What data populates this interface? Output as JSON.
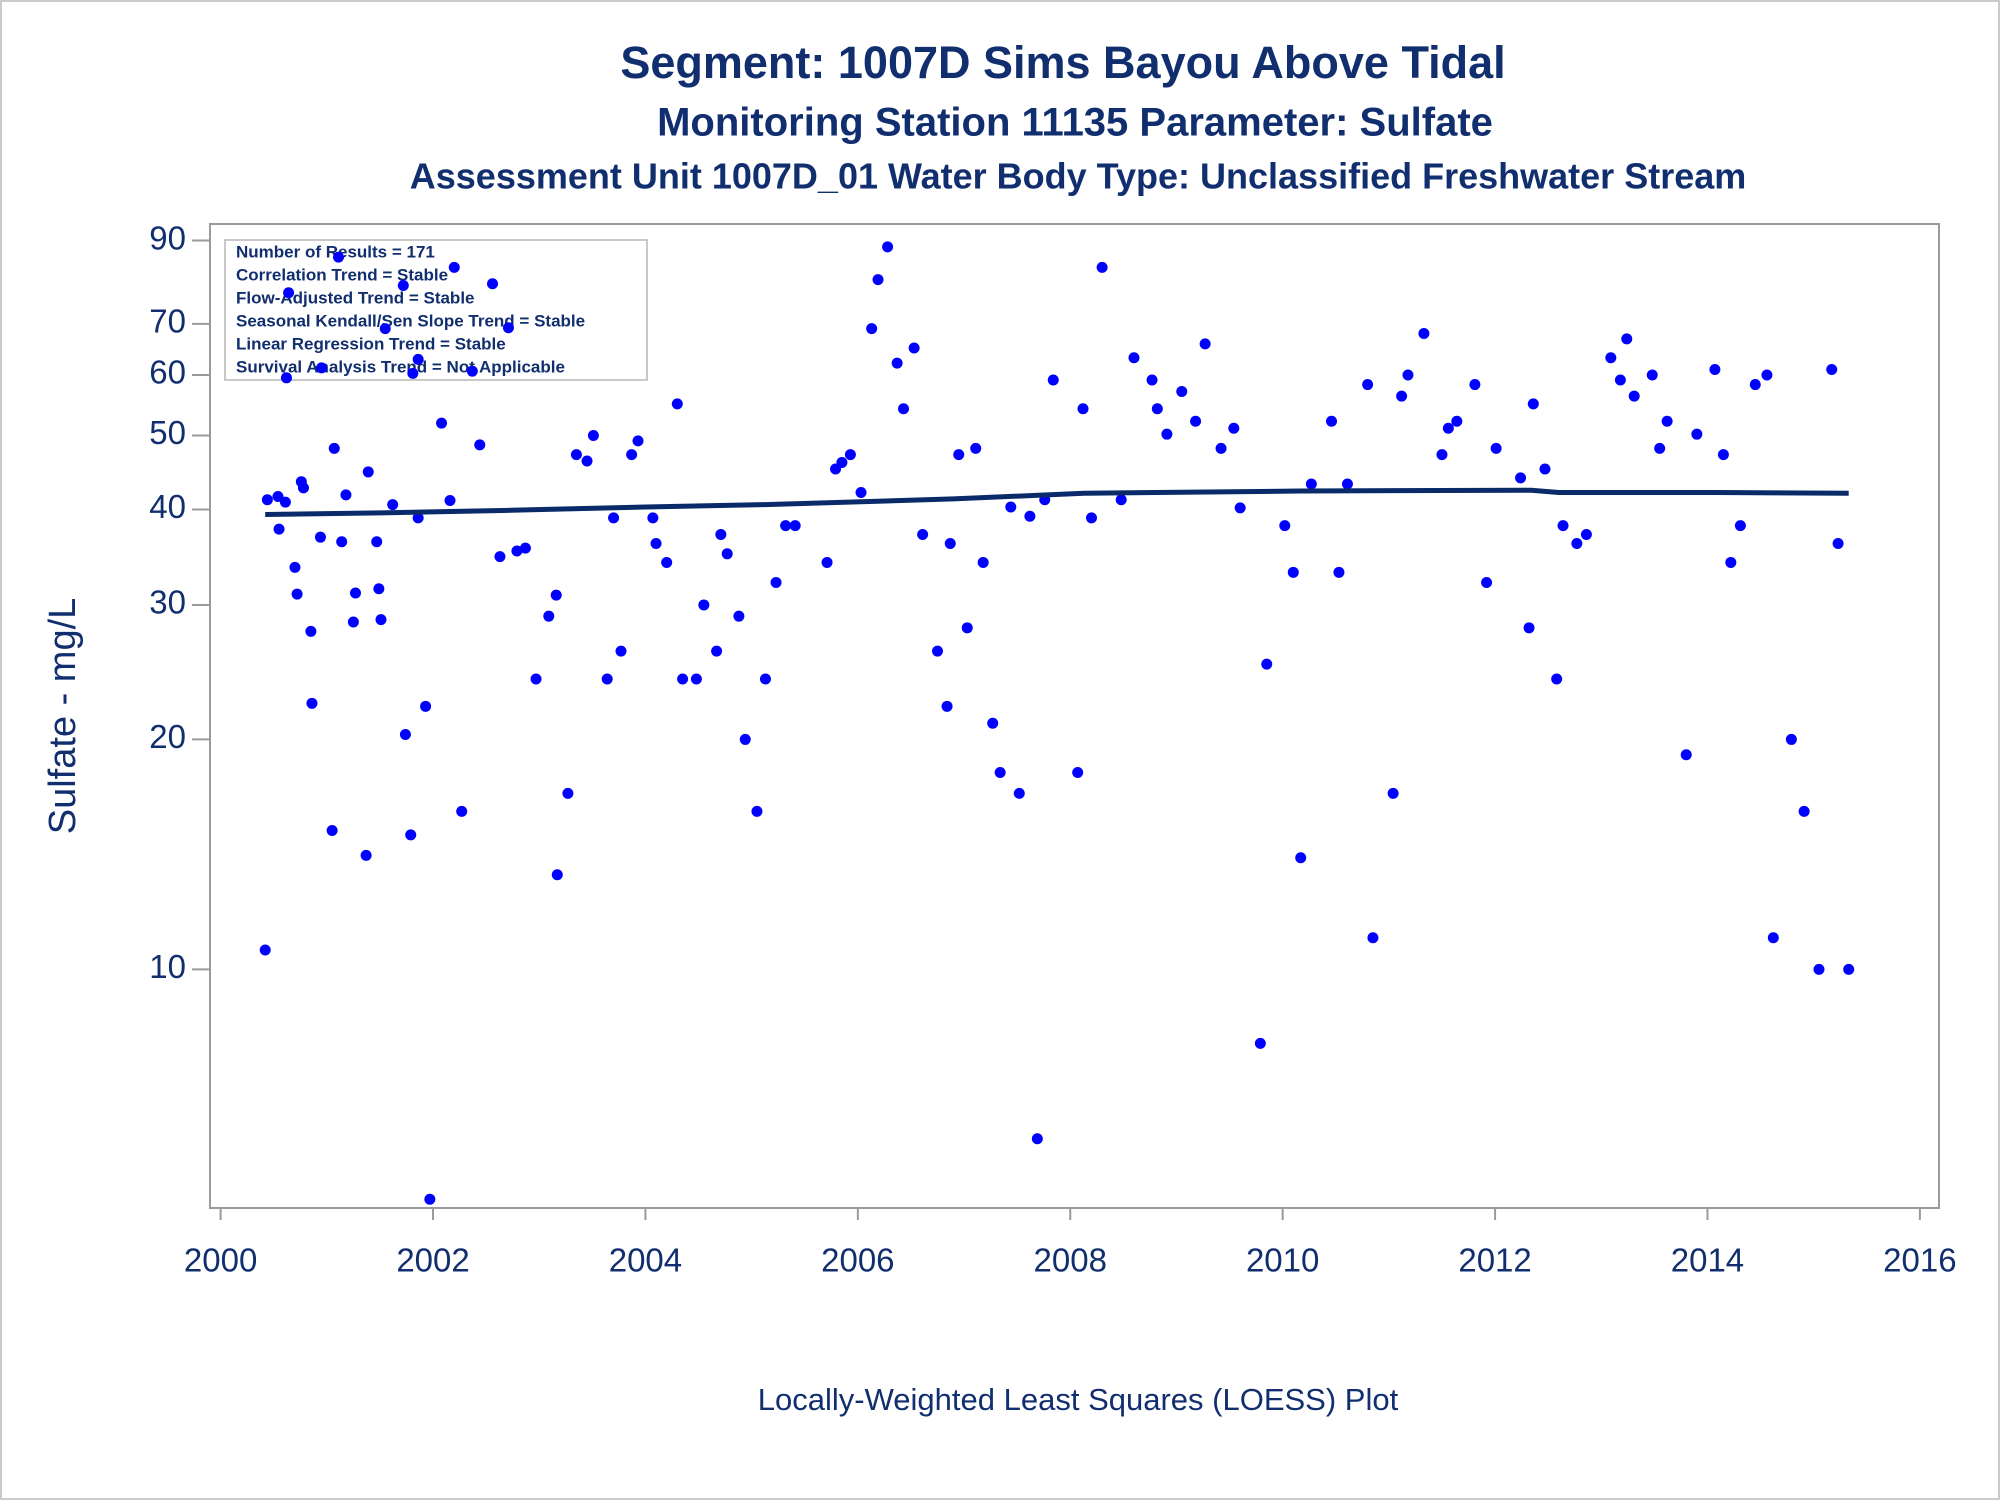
{
  "chart_data": {
    "type": "scatter",
    "title": "Segment: 1007D  Sims Bayou Above Tidal",
    "subtitle": "Monitoring Station 11135 Parameter: Sulfate",
    "subtitle_2": "Assessment Unit 1007D_01   Water Body Type: Unclassified Freshwater Stream",
    "ylabel": "Sulfate - mg/L",
    "footnote": "Locally-Weighted Least Squares (LOESS) Plot",
    "annotations": [
      "Number of Results = 171",
      "Correlation Trend = Stable",
      "Flow-Adjusted Trend = Stable",
      "Seasonal Kendall/Sen Slope Trend = Stable",
      "Linear Regression Trend = Stable",
      "Survival Analysis Trend = Not Applicable"
    ],
    "ylog": true,
    "xlim": [
      1999.9,
      2016.18
    ],
    "ylim": [
      4.87,
      94.6
    ],
    "xticks": [
      2000,
      2002,
      2004,
      2006,
      2008,
      2010,
      2012,
      2014,
      2016
    ],
    "yticks": [
      10,
      20,
      30,
      40,
      50,
      60,
      70,
      90
    ],
    "series": [
      {
        "type": "scatter",
        "color": "#0000ff",
        "x": [
          2000.42,
          2000.44,
          2000.54,
          2000.61,
          2000.55,
          2000.64,
          2000.62,
          2000.7,
          2000.72,
          2000.76,
          2000.78,
          2000.85,
          2000.86,
          2000.94,
          2000.95,
          2001.05,
          2001.07,
          2001.11,
          2001.14,
          2001.18,
          2001.25,
          2001.27,
          2001.37,
          2001.39,
          2001.47,
          2001.49,
          2001.51,
          2001.55,
          2001.62,
          2001.72,
          2001.74,
          2001.79,
          2001.81,
          2001.86,
          2001.86,
          2001.93,
          2001.97,
          2002.08,
          2002.16,
          2002.2,
          2002.27,
          2002.37,
          2002.44,
          2002.56,
          2002.63,
          2002.71,
          2002.79,
          2002.87,
          2002.97,
          2003.09,
          2003.16,
          2003.17,
          2003.27,
          2003.35,
          2003.45,
          2003.51,
          2003.64,
          2003.7,
          2003.77,
          2003.87,
          2003.93,
          2004.07,
          2004.1,
          2004.2,
          2004.3,
          2004.35,
          2004.48,
          2004.55,
          2004.67,
          2004.71,
          2004.77,
          2004.88,
          2004.94,
          2005.05,
          2005.13,
          2005.23,
          2005.32,
          2005.41,
          2005.71,
          2005.79,
          2005.85,
          2005.93,
          2006.03,
          2006.13,
          2006.19,
          2006.28,
          2006.37,
          2006.43,
          2006.53,
          2006.61,
          2006.75,
          2006.84,
          2006.87,
          2006.95,
          2007.03,
          2007.11,
          2007.18,
          2007.27,
          2007.34,
          2007.44,
          2007.52,
          2007.62,
          2007.69,
          2007.76,
          2007.84,
          2008.07,
          2008.12,
          2008.2,
          2008.3,
          2008.48,
          2008.6,
          2008.77,
          2008.82,
          2008.91,
          2009.05,
          2009.18,
          2009.27,
          2009.42,
          2009.54,
          2009.6,
          2009.79,
          2009.85,
          2010.02,
          2010.1,
          2010.17,
          2010.27,
          2010.46,
          2010.53,
          2010.61,
          2010.8,
          2010.85,
          2011.04,
          2011.12,
          2011.18,
          2011.33,
          2011.5,
          2011.56,
          2011.64,
          2011.81,
          2011.92,
          2012.01,
          2012.24,
          2012.32,
          2012.36,
          2012.47,
          2012.58,
          2012.64,
          2012.77,
          2012.86,
          2013.09,
          2013.18,
          2013.24,
          2013.31,
          2013.48,
          2013.55,
          2013.62,
          2013.8,
          2013.9,
          2014.07,
          2014.15,
          2014.22,
          2014.31,
          2014.45,
          2014.56,
          2014.62,
          2014.79,
          2014.91,
          2015.05,
          2015.17,
          2015.23,
          2015.33
        ],
        "values": [
          10.6,
          41.2,
          41.6,
          40.9,
          37.7,
          76.9,
          59.5,
          33.6,
          31.0,
          43.5,
          42.7,
          27.7,
          22.3,
          36.8,
          61.3,
          15.2,
          48.1,
          85.6,
          36.3,
          41.8,
          28.5,
          31.1,
          14.1,
          44.8,
          36.3,
          31.5,
          28.7,
          69.0,
          40.6,
          78.6,
          20.3,
          15.0,
          60.3,
          62.9,
          39.0,
          22.1,
          5.0,
          51.9,
          41.1,
          83.0,
          16.1,
          60.7,
          48.6,
          79.0,
          34.7,
          69.2,
          35.3,
          35.6,
          24.0,
          29.0,
          30.9,
          13.3,
          17.0,
          47.2,
          46.3,
          50,
          24.0,
          39.0,
          26.1,
          47.2,
          49.2,
          39.0,
          36.1,
          34.1,
          55.0,
          24.0,
          24.0,
          30,
          26.1,
          37.1,
          35.0,
          29.0,
          20,
          16.1,
          24.0,
          32.1,
          38.1,
          38.1,
          34.1,
          45.2,
          46.1,
          47.2,
          42.1,
          69.0,
          80,
          88.3,
          62.2,
          54.2,
          65.1,
          37.1,
          26.1,
          22.1,
          36.1,
          47.2,
          28.0,
          48.1,
          34.1,
          21.0,
          18.1,
          40.3,
          17.0,
          39.2,
          6.0,
          41.2,
          59.1,
          18.1,
          54.2,
          39.0,
          83.0,
          41.2,
          63.2,
          59.1,
          54.2,
          50.2,
          57.1,
          52.2,
          65.9,
          48.1,
          51.1,
          40.2,
          8.0,
          25.1,
          38.1,
          33.1,
          14.0,
          43.2,
          52.2,
          33.1,
          43.2,
          58.3,
          11.0,
          17.0,
          56.3,
          60,
          68.0,
          47.2,
          51.1,
          52.2,
          58.3,
          32.1,
          48.1,
          44.0,
          28.0,
          55.0,
          45.2,
          24.0,
          38.1,
          36.1,
          37.1,
          63.2,
          59.1,
          66.9,
          56.3,
          60,
          48.1,
          52.2,
          19.1,
          50.2,
          61.0,
          47.2,
          34.1,
          38.1,
          58.3,
          60,
          11.0,
          20,
          16.1,
          10,
          61.0,
          36.1,
          10
        ]
      },
      {
        "type": "line",
        "color": "#0a2a6a",
        "x": [
          2000.42,
          2001.5,
          2002.73,
          2004,
          2005.13,
          2006.9,
          2008.13,
          2010.17,
          2012.34,
          2012.6,
          2014.07,
          2015.33
        ],
        "values": [
          39.4,
          39.6,
          39.9,
          40.3,
          40.6,
          41.3,
          42.0,
          42.3,
          42.4,
          42.1,
          42.1,
          42.0
        ]
      }
    ]
  }
}
